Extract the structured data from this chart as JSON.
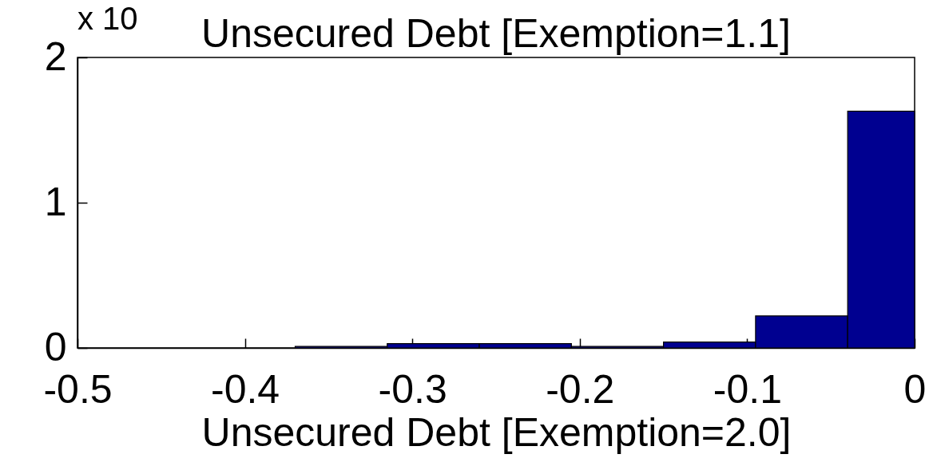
{
  "chart_data": {
    "type": "histogram",
    "title": "Unsecured Debt [Exemption=1.1]",
    "xlabel": "Unsecured Debt [Exemption=2.0]",
    "annotations": [
      "x 10"
    ],
    "bins": [
      -0.37,
      -0.315,
      -0.26,
      -0.205,
      -0.15,
      -0.095,
      -0.04,
      0
    ],
    "values": [
      0.01,
      0.03,
      0.03,
      0.01,
      0.04,
      0.22,
      1.63
    ],
    "color": "#000090",
    "xlim": [
      -0.5,
      0
    ],
    "xticks": [
      -0.5,
      -0.4,
      -0.3,
      -0.2,
      -0.1,
      0
    ],
    "ylim": [
      0,
      2
    ],
    "yticks": [
      0,
      1,
      2
    ]
  }
}
